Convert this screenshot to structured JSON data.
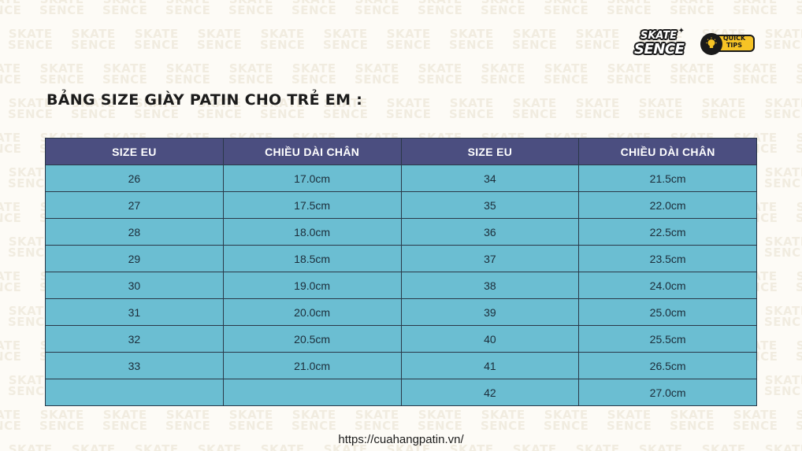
{
  "watermark": {
    "line1": "SKATE",
    "line2": "SENCE"
  },
  "logo": {
    "line1": "SKATE",
    "line2": "SENCE"
  },
  "quick_tips": {
    "line1": "QUICK",
    "line2": "TIPS"
  },
  "title": "BẢNG SIZE GIÀY PATIN CHO TRẺ EM :",
  "table": {
    "headers": [
      "SIZE EU",
      "CHIỀU DÀI CHÂN",
      "SIZE EU",
      "CHIỀU DÀI CHÂN"
    ],
    "rows": [
      [
        "26",
        "17.0cm",
        "34",
        "21.5cm"
      ],
      [
        "27",
        "17.5cm",
        "35",
        "22.0cm"
      ],
      [
        "28",
        "18.0cm",
        "36",
        "22.5cm"
      ],
      [
        "29",
        "18.5cm",
        "37",
        "23.5cm"
      ],
      [
        "30",
        "19.0cm",
        "38",
        "24.0cm"
      ],
      [
        "31",
        "20.0cm",
        "39",
        "25.0cm"
      ],
      [
        "32",
        "20.5cm",
        "40",
        "25.5cm"
      ],
      [
        "33",
        "21.0cm",
        "41",
        "26.5cm"
      ],
      [
        "",
        "",
        "42",
        "27.0cm"
      ]
    ]
  },
  "footer": "https://cuahangpatin.vn/",
  "colors": {
    "background": "#fdfbf6",
    "header_bg": "#4b4e80",
    "cell_bg": "#6bbed2",
    "tips_yellow": "#f6c325"
  },
  "icons": {
    "quick_tips": "lightbulb-icon"
  }
}
